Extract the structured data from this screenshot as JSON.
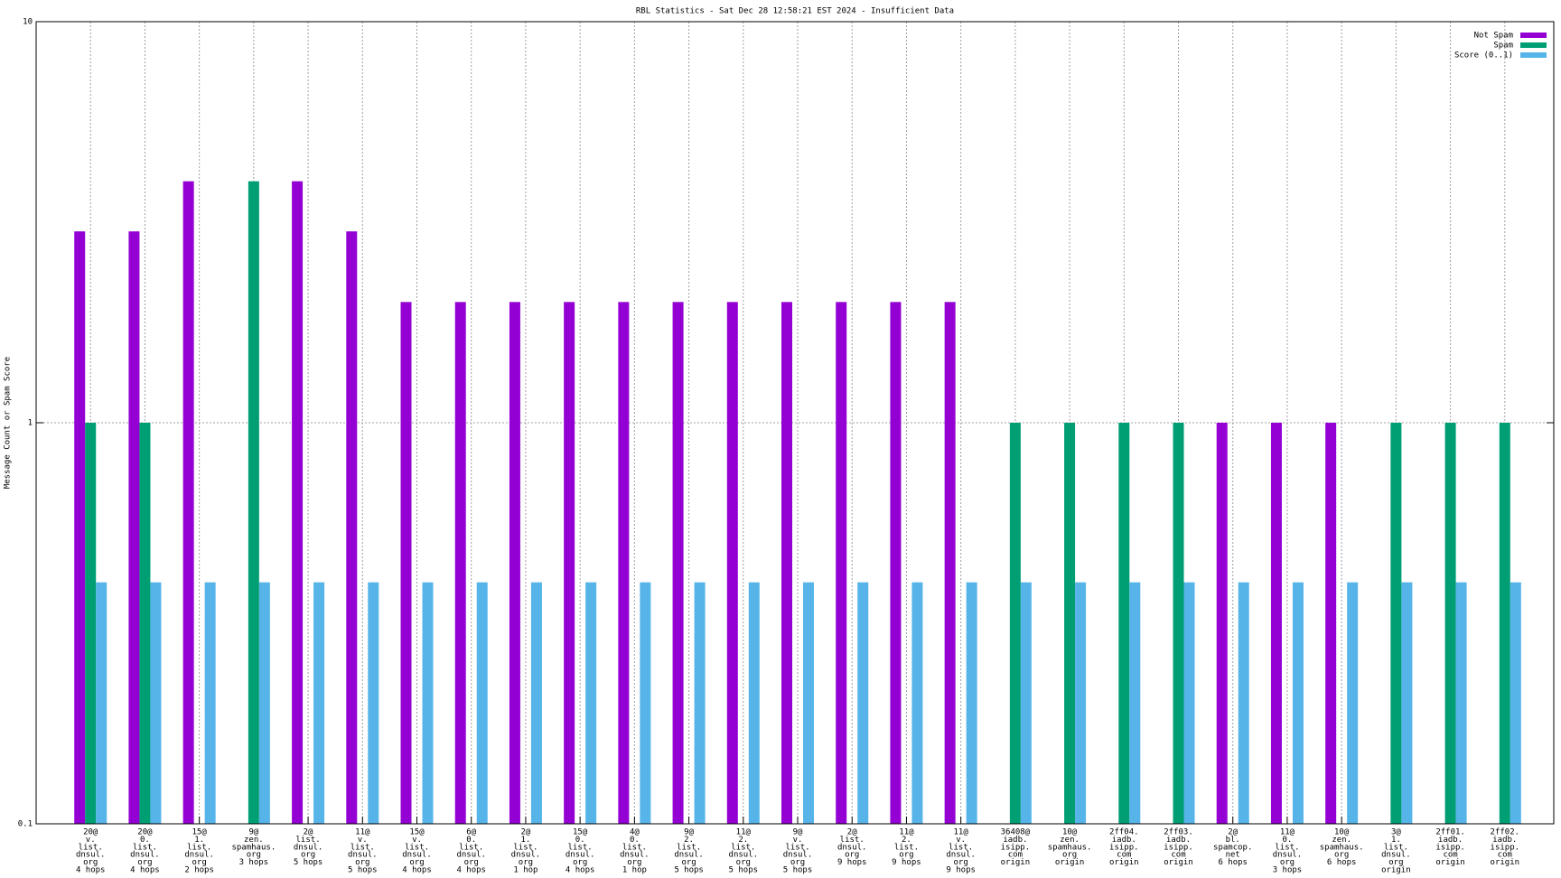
{
  "chart_data": {
    "type": "bar",
    "title": "RBL Statistics - Sat Dec 28 12:58:21 EST 2024 - Insufficient Data",
    "y_label": "Message Count or Spam Score",
    "yscale": "log",
    "ylim": [
      0.1,
      10
    ],
    "yticks": [
      0.1,
      1,
      10
    ],
    "grid": true,
    "legend_position": "top-right",
    "categories": [
      [
        "20@",
        "v.",
        "list.",
        "dnsul.",
        "org",
        "4 hops"
      ],
      [
        "20@",
        "0.",
        "list.",
        "dnsul.",
        "org",
        "4 hops"
      ],
      [
        "15@",
        "1.",
        "list.",
        "dnsul.",
        "org",
        "2 hops"
      ],
      [
        "9@",
        "zen.",
        "spamhaus.",
        "org",
        "3 hops"
      ],
      [
        "2@",
        "list.",
        "dnsul.",
        "org",
        "5 hops"
      ],
      [
        "11@",
        "v.",
        "list.",
        "dnsul.",
        "org",
        "5 hops"
      ],
      [
        "15@",
        "v.",
        "list.",
        "dnsul.",
        "org",
        "4 hops"
      ],
      [
        "6@",
        "0.",
        "list.",
        "dnsul.",
        "org",
        "4 hops"
      ],
      [
        "2@",
        "1.",
        "list.",
        "dnsul.",
        "org",
        "1 hop"
      ],
      [
        "15@",
        "0.",
        "list.",
        "dnsul.",
        "org",
        "4 hops"
      ],
      [
        "4@",
        "0.",
        "list.",
        "dnsul.",
        "org",
        "1 hop"
      ],
      [
        "9@",
        "2.",
        "list.",
        "dnsul.",
        "org",
        "5 hops"
      ],
      [
        "11@",
        "2.",
        "list.",
        "dnsul.",
        "org",
        "5 hops"
      ],
      [
        "9@",
        "v.",
        "list.",
        "dnsul.",
        "org",
        "5 hops"
      ],
      [
        "2@",
        "list.",
        "dnsul.",
        "org",
        "9 hops"
      ],
      [
        "11@",
        "2.",
        "list.",
        "org",
        "9 hops"
      ],
      [
        "11@",
        "v.",
        "list.",
        "dnsul.",
        "org",
        "9 hops"
      ],
      [
        "36408@",
        "iadb.",
        "isipp.",
        "com",
        "origin"
      ],
      [
        "10@",
        "zen.",
        "spamhaus.",
        "org",
        "origin"
      ],
      [
        "2ff04.",
        "iadb.",
        "isipp.",
        "com",
        "origin"
      ],
      [
        "2ff03.",
        "iadb.",
        "isipp.",
        "com",
        "origin"
      ],
      [
        "2@",
        "bl.",
        "spamcop.",
        "net",
        "6 hops"
      ],
      [
        "11@",
        "0.",
        "list.",
        "dnsul.",
        "org",
        "3 hops"
      ],
      [
        "10@",
        "zen.",
        "spamhaus.",
        "org",
        "6 hops"
      ],
      [
        "3@",
        "1.",
        "list.",
        "dnsul.",
        "org",
        "origin"
      ],
      [
        "2ff01.",
        "iadb.",
        "isipp.",
        "com",
        "origin"
      ],
      [
        "2ff02.",
        "iadb.",
        "isipp.",
        "com",
        "origin"
      ]
    ],
    "series": [
      {
        "name": "Not Spam",
        "color": "#9400d3",
        "values": [
          3,
          3,
          4,
          null,
          4,
          3,
          2,
          2,
          2,
          2,
          2,
          2,
          2,
          2,
          2,
          2,
          2,
          null,
          null,
          null,
          null,
          1,
          1,
          1,
          null,
          null,
          null
        ]
      },
      {
        "name": "Spam",
        "color": "#009e73",
        "values": [
          1,
          1,
          null,
          4,
          null,
          null,
          null,
          null,
          null,
          null,
          null,
          null,
          null,
          null,
          null,
          null,
          null,
          1,
          1,
          1,
          1,
          null,
          null,
          null,
          1,
          1,
          1
        ]
      },
      {
        "name": "Score (0..1)",
        "color": "#56b4e9",
        "values": [
          0.4,
          0.4,
          0.4,
          0.4,
          0.4,
          0.4,
          0.4,
          0.4,
          0.4,
          0.4,
          0.4,
          0.4,
          0.4,
          0.4,
          0.4,
          0.4,
          0.4,
          0.4,
          0.4,
          0.4,
          0.4,
          0.4,
          0.4,
          0.4,
          0.4,
          0.4,
          0.4
        ]
      }
    ]
  }
}
